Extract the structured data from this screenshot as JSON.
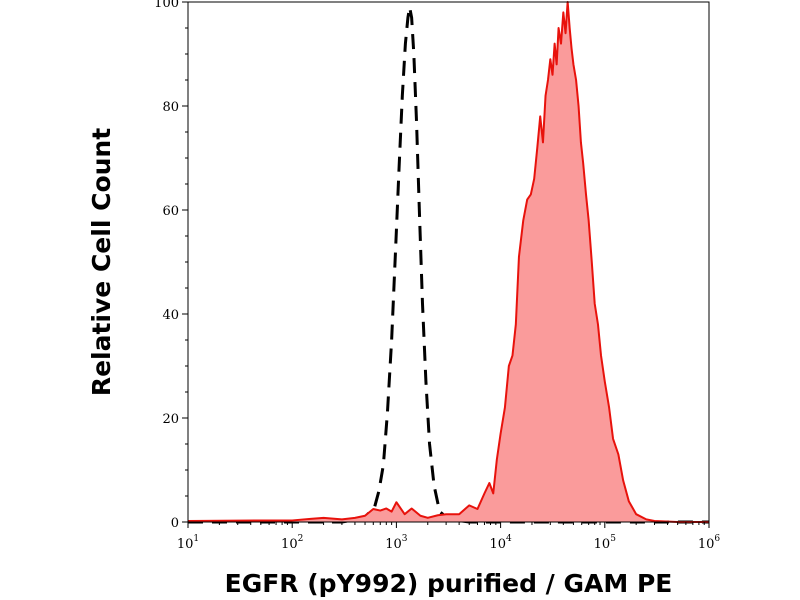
{
  "chart_data": {
    "type": "area",
    "xlabel": "EGFR (pY992) purified / GAM PE",
    "ylabel": "Relative Cell Count",
    "x_scale": "log",
    "xlim": [
      10,
      1000000
    ],
    "ylim": [
      0,
      100
    ],
    "x_ticks": [
      {
        "base": "10",
        "exp": "1"
      },
      {
        "base": "10",
        "exp": "2"
      },
      {
        "base": "10",
        "exp": "3"
      },
      {
        "base": "10",
        "exp": "4"
      },
      {
        "base": "10",
        "exp": "5"
      },
      {
        "base": "10",
        "exp": "6"
      }
    ],
    "y_ticks": [
      "0",
      "20",
      "40",
      "60",
      "80",
      "100"
    ],
    "grid": false,
    "series": [
      {
        "style": "dashed",
        "color": "#000000",
        "fill": "none",
        "x": [
          10,
          100,
          300,
          420,
          500,
          560,
          620,
          680,
          750,
          820,
          900,
          980,
          1060,
          1140,
          1220,
          1290,
          1340,
          1400,
          1470,
          1560,
          1660,
          1780,
          1920,
          2080,
          2300,
          2600,
          3200,
          5000,
          100000,
          1000000
        ],
        "y": [
          0,
          0,
          0,
          0.5,
          1,
          2,
          3,
          6,
          11,
          21,
          35,
          52,
          68,
          82,
          92,
          97,
          99,
          97,
          90,
          77,
          60,
          42,
          27,
          15,
          7,
          2,
          0.5,
          0,
          0,
          0
        ]
      },
      {
        "style": "solid",
        "color": "#e8120c",
        "fill": "#fa9b9b",
        "x": [
          10,
          50,
          100,
          150,
          200,
          300,
          400,
          500,
          600,
          700,
          800,
          900,
          1000,
          1200,
          1400,
          1700,
          2000,
          2500,
          3000,
          4000,
          5000,
          6000,
          7000,
          7800,
          8500,
          9200,
          10000,
          11000,
          12000,
          13000,
          14000,
          15000,
          16500,
          18000,
          19500,
          21000,
          22500,
          24000,
          25500,
          27000,
          28500,
          30000,
          31500,
          33000,
          34500,
          36000,
          38000,
          40000,
          42000,
          44000,
          46000,
          48000,
          50000,
          53000,
          56000,
          59000,
          62000,
          66000,
          70000,
          75000,
          80000,
          86000,
          92000,
          100000,
          110000,
          120000,
          135000,
          150000,
          170000,
          200000,
          250000,
          300000,
          500000,
          1000000
        ],
        "y": [
          0.2,
          0.3,
          0.3,
          0.6,
          0.8,
          0.5,
          0.8,
          1.2,
          2.5,
          2.2,
          2.6,
          2,
          3.8,
          1.5,
          2.6,
          1.2,
          0.8,
          1.3,
          1.5,
          1.5,
          3.2,
          2.5,
          5.5,
          7.5,
          5.5,
          12,
          17,
          22,
          30,
          32,
          38,
          51,
          58,
          62,
          63,
          66,
          72,
          78,
          73,
          82,
          85,
          89,
          86,
          92,
          88,
          95,
          92,
          98,
          94,
          100,
          95,
          91,
          88,
          85,
          80,
          73,
          69,
          63,
          58,
          50,
          42,
          38,
          32,
          27,
          22,
          16,
          13,
          8,
          4,
          1.5,
          0.5,
          0.2,
          0,
          0
        ]
      }
    ]
  }
}
